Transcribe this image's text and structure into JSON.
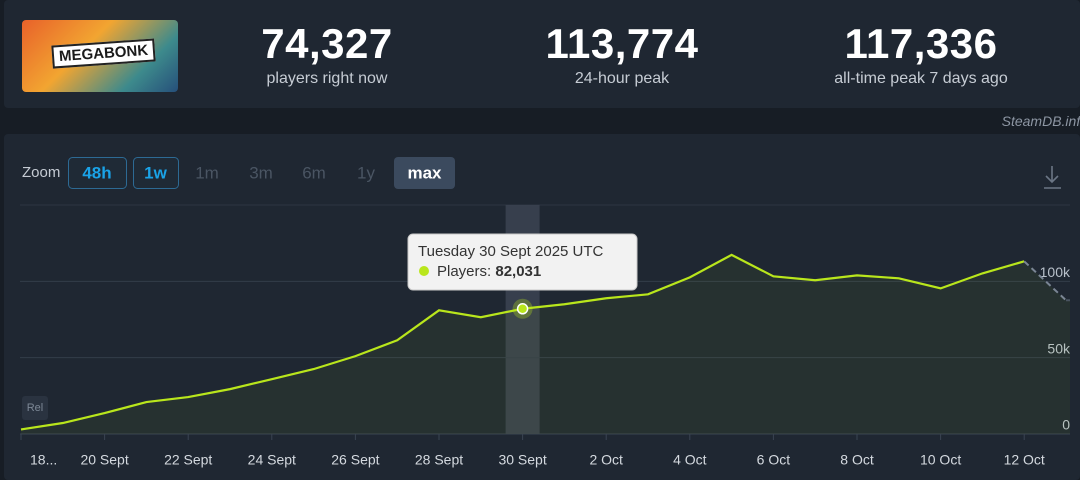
{
  "header": {
    "logo_text": "MEGABONK",
    "stats": [
      {
        "value": "74,327",
        "label": "players right now"
      },
      {
        "value": "113,774",
        "label": "24-hour peak"
      },
      {
        "value": "117,336",
        "label": "all-time peak 7 days ago"
      }
    ],
    "watermark": "SteamDB.info"
  },
  "zoom": {
    "label": "Zoom",
    "buttons": [
      "48h",
      "1w",
      "1m",
      "3m",
      "6m",
      "1y",
      "max"
    ],
    "active": "max",
    "outlined": [
      "48h",
      "1w"
    ]
  },
  "rel_badge": "Rel",
  "chart_data": {
    "type": "line",
    "categories": [
      "18...",
      null,
      "20 Sept",
      null,
      "22 Sept",
      null,
      "24 Sept",
      null,
      "26 Sept",
      null,
      "28 Sept",
      null,
      "30 Sept",
      null,
      "2 Oct",
      null,
      "4 Oct",
      null,
      "6 Oct",
      null,
      "8 Oct",
      null,
      "10 Oct",
      null,
      "12 Oct",
      null
    ],
    "series": [
      {
        "name": "Players",
        "color": "#b9e61c",
        "values": [
          3000,
          7200,
          13700,
          20900,
          24200,
          29400,
          35900,
          42500,
          51000,
          61400,
          81000,
          76500,
          82031,
          85000,
          88900,
          91500,
          102600,
          117336,
          103300,
          100700,
          103900,
          102000,
          95400,
          105200,
          113100,
          87600
        ]
      }
    ],
    "dashed_last_segment": true,
    "ylim": [
      0,
      150000
    ],
    "yticks": [
      {
        "value": 0,
        "label": "0"
      },
      {
        "value": 50000,
        "label": "50k"
      },
      {
        "value": 100000,
        "label": "100k"
      }
    ],
    "grid": true,
    "tooltip": {
      "title": "Tuesday 30 Sept 2025 UTC",
      "series_label": "Players:",
      "value_label": "82,031"
    }
  }
}
